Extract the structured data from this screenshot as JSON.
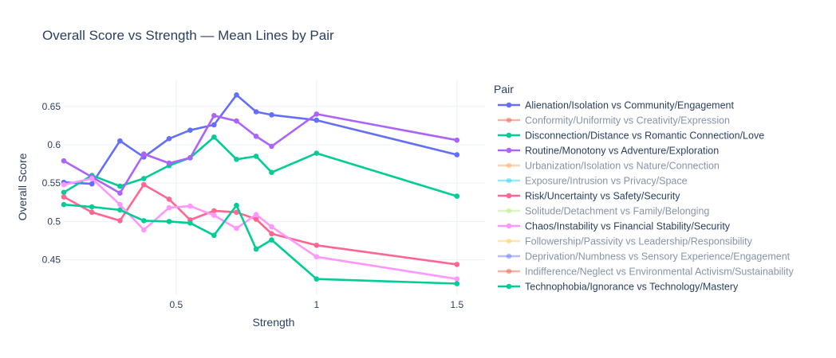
{
  "chart_data": {
    "type": "line",
    "title": "Overall Score vs Strength — Mean Lines by Pair",
    "xlabel": "Strength",
    "ylabel": "Overall Score",
    "xlim": [
      0.1,
      1.6
    ],
    "ylim": [
      0.405,
      0.685
    ],
    "xticks": [
      0.5,
      1,
      1.5
    ],
    "xtick_labels": [
      "0.5",
      "1",
      "1.5"
    ],
    "yticks": [
      0.45,
      0.5,
      0.55,
      0.6,
      0.65
    ],
    "ytick_labels": [
      "0.45",
      "0.5",
      "0.55",
      "0.6",
      "0.65"
    ],
    "grid": true,
    "legend_title": "Pair",
    "legend_position": "right",
    "series": [
      {
        "name": "Alienation/Isolation vs Community/Engagement",
        "color": "#636efa",
        "visible": true,
        "x": [
          0.1,
          0.2,
          0.3,
          0.385,
          0.475,
          0.55,
          0.635,
          0.715,
          0.785,
          0.84,
          1.0,
          1.5
        ],
        "y": [
          0.551,
          0.549,
          0.605,
          0.584,
          0.608,
          0.619,
          0.626,
          0.665,
          0.643,
          0.639,
          0.632,
          0.587
        ]
      },
      {
        "name": "Conformity/Uniformity vs Creativity/Expression",
        "color": "#ef553b",
        "visible": false,
        "x": [],
        "y": []
      },
      {
        "name": "Disconnection/Distance vs Romantic Connection/Love",
        "color": "#00cc96",
        "visible": true,
        "x": [
          0.1,
          0.2,
          0.3,
          0.385,
          0.475,
          0.55,
          0.635,
          0.715,
          0.785,
          0.84,
          1.0,
          1.5
        ],
        "y": [
          0.538,
          0.56,
          0.546,
          0.556,
          0.573,
          0.583,
          0.61,
          0.581,
          0.585,
          0.564,
          0.589,
          0.533
        ]
      },
      {
        "name": "Routine/Monotony vs Adventure/Exploration",
        "color": "#ab63fa",
        "visible": true,
        "x": [
          0.1,
          0.2,
          0.3,
          0.385,
          0.475,
          0.55,
          0.635,
          0.715,
          0.785,
          0.84,
          1.0,
          1.5
        ],
        "y": [
          0.579,
          0.558,
          0.537,
          0.588,
          0.576,
          0.583,
          0.638,
          0.631,
          0.611,
          0.598,
          0.64,
          0.606
        ]
      },
      {
        "name": "Urbanization/Isolation vs Nature/Connection",
        "color": "#ffa15a",
        "visible": false,
        "x": [],
        "y": []
      },
      {
        "name": "Exposure/Intrusion vs Privacy/Space",
        "color": "#19d3f3",
        "visible": false,
        "x": [],
        "y": []
      },
      {
        "name": "Risk/Uncertainty vs Safety/Security",
        "color": "#ff6692",
        "visible": true,
        "x": [
          0.1,
          0.2,
          0.3,
          0.385,
          0.475,
          0.55,
          0.635,
          0.715,
          0.785,
          0.84,
          1.0,
          1.5
        ],
        "y": [
          0.532,
          0.512,
          0.501,
          0.548,
          0.529,
          0.502,
          0.514,
          0.512,
          0.503,
          0.484,
          0.469,
          0.444
        ]
      },
      {
        "name": "Solitude/Detachment vs Family/Belonging",
        "color": "#b6e880",
        "visible": false,
        "x": [],
        "y": []
      },
      {
        "name": "Chaos/Instability vs Financial Stability/Security",
        "color": "#ff97ff",
        "visible": true,
        "x": [
          0.1,
          0.2,
          0.3,
          0.385,
          0.475,
          0.55,
          0.635,
          0.715,
          0.785,
          0.84,
          1.0,
          1.5
        ],
        "y": [
          0.548,
          0.556,
          0.522,
          0.489,
          0.518,
          0.52,
          0.508,
          0.491,
          0.509,
          0.493,
          0.454,
          0.425
        ]
      },
      {
        "name": "Followership/Passivity vs Leadership/Responsibility",
        "color": "#fecb52",
        "visible": false,
        "x": [],
        "y": []
      },
      {
        "name": "Deprivation/Numbness vs Sensory Experience/Engagement",
        "color": "#636efa",
        "visible": false,
        "x": [],
        "y": []
      },
      {
        "name": "Indifference/Neglect vs Environmental Activism/Sustainability",
        "color": "#ef553b",
        "visible": false,
        "x": [],
        "y": []
      },
      {
        "name": "Technophobia/Ignorance vs Technology/Mastery",
        "color": "#00cc96",
        "visible": true,
        "x": [
          0.1,
          0.2,
          0.3,
          0.385,
          0.475,
          0.55,
          0.635,
          0.715,
          0.785,
          0.84,
          1.0,
          1.5
        ],
        "y": [
          0.522,
          0.519,
          0.515,
          0.501,
          0.5,
          0.498,
          0.482,
          0.521,
          0.464,
          0.476,
          0.425,
          0.419
        ]
      }
    ]
  }
}
